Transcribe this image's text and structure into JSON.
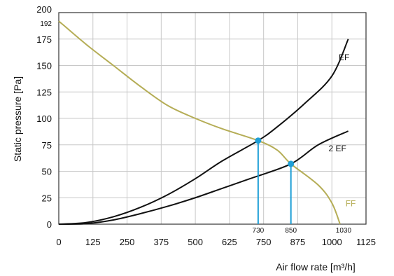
{
  "chart_data": {
    "type": "line",
    "xlabel": "Air flow rate [m³/h]",
    "ylabel": "Static pressure [Pa]",
    "xlim": [
      0,
      1125
    ],
    "ylim": [
      0,
      200
    ],
    "x_ticks": [
      "0",
      "125",
      "250",
      "375",
      "500",
      "625",
      "750",
      "875",
      "1000",
      "1125"
    ],
    "y_ticks": [
      "0",
      "25",
      "50",
      "75",
      "100",
      "125",
      "150",
      "175",
      "200"
    ],
    "y_extra_tick": "192",
    "grid": true,
    "colors": {
      "system": "#111111",
      "fan": "#b5ad56",
      "operating": "#1f9fd6",
      "grid": "#c8c8c8"
    },
    "series": [
      {
        "name": "EF",
        "color": "#111111",
        "points": [
          [
            0,
            0
          ],
          [
            100,
            1.5
          ],
          [
            200,
            7
          ],
          [
            300,
            16
          ],
          [
            400,
            28
          ],
          [
            500,
            43
          ],
          [
            600,
            60
          ],
          [
            730,
            79
          ],
          [
            800,
            92
          ],
          [
            900,
            114
          ],
          [
            1000,
            140
          ],
          [
            1060,
            175
          ]
        ]
      },
      {
        "name": "2 EF",
        "color": "#111111",
        "points": [
          [
            0,
            0
          ],
          [
            100,
            0.5
          ],
          [
            200,
            4
          ],
          [
            300,
            10
          ],
          [
            400,
            17
          ],
          [
            500,
            25
          ],
          [
            600,
            34
          ],
          [
            700,
            43
          ],
          [
            850,
            57
          ],
          [
            950,
            75
          ],
          [
            1060,
            88
          ]
        ]
      },
      {
        "name": "FF",
        "color": "#b5ad56",
        "points": [
          [
            0,
            192
          ],
          [
            100,
            170
          ],
          [
            200,
            150
          ],
          [
            300,
            130
          ],
          [
            400,
            112
          ],
          [
            500,
            100
          ],
          [
            600,
            90
          ],
          [
            730,
            79
          ],
          [
            800,
            70
          ],
          [
            850,
            57
          ],
          [
            950,
            37
          ],
          [
            1000,
            20
          ],
          [
            1030,
            0
          ]
        ]
      }
    ],
    "operating_points": [
      {
        "x": 730,
        "y": 79,
        "label": "730"
      },
      {
        "x": 850,
        "y": 57,
        "label": "850"
      }
    ],
    "annotations": [
      {
        "x": 1030,
        "y": 0,
        "label": "1030"
      }
    ]
  }
}
